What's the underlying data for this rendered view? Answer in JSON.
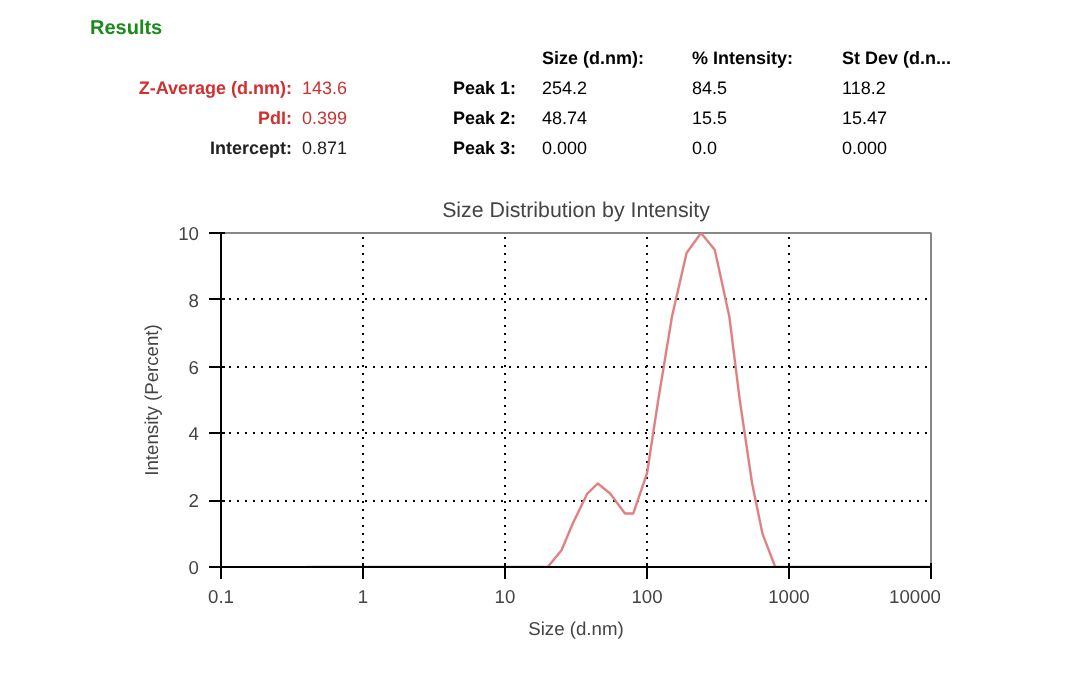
{
  "chart_data": {
    "type": "line",
    "title": "Size Distribution by Intensity",
    "xlabel": "Size (d.nm)",
    "ylabel": "Intensity (Percent)",
    "log": "x",
    "grid": true,
    "marker": "none",
    "line_style": "solid",
    "xlim": [
      0.1,
      10000
    ],
    "xticks": [
      {
        "value": 0.1,
        "label": "0.1"
      },
      1,
      10,
      100,
      1000,
      10000
    ],
    "ylim": [
      0,
      10
    ],
    "yticks": [
      0,
      2,
      4,
      6,
      8,
      10
    ],
    "annotations": [
      "Results",
      "Size (d.nm):",
      "% Intensity:",
      "St Dev (d.n...",
      "Z-Average (d.nm):",
      "143.6",
      "Peak 1:",
      "254.2",
      "84.5",
      "118.2",
      "PdI:",
      "0.399",
      "Peak 2:",
      "48.74",
      "15.5",
      "15.47",
      "Intercept:",
      "0.871",
      "Peak 3:",
      "0.000",
      "0.0",
      "0.000"
    ],
    "series": [
      {
        "color": "#e08080",
        "x": [
          0.4,
          20,
          25,
          30,
          38,
          45,
          55,
          70,
          80,
          100,
          120,
          150,
          190,
          240,
          300,
          380,
          450,
          550,
          650,
          800,
          10000
        ],
        "values": [
          0,
          0,
          0.5,
          1.3,
          2.2,
          2.5,
          2.2,
          1.6,
          1.6,
          2.8,
          5,
          7.5,
          9.4,
          10,
          9.5,
          7.5,
          5,
          2.5,
          1,
          0,
          0
        ]
      }
    ]
  }
}
